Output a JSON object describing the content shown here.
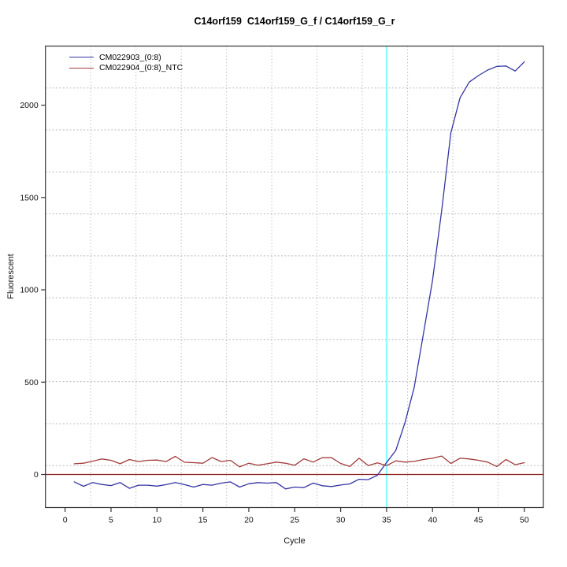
{
  "chart_data": {
    "type": "line",
    "title": "C14orf159  C14orf159_G_f / C14orf159_G_r",
    "xlabel": "Cycle",
    "ylabel": "Fluorescent",
    "xlim": [
      -2.14,
      52.07
    ],
    "ylim": [
      -179,
      2320
    ],
    "x_ticks": [
      0,
      5,
      10,
      15,
      20,
      25,
      30,
      35,
      40,
      45,
      50
    ],
    "y_ticks": [
      0,
      500,
      1000,
      1500,
      2000
    ],
    "grid": {
      "nx": 11,
      "ny": 11,
      "color": "#b9b9b9",
      "style": "dotted"
    },
    "legend_position": "top-left",
    "x": [
      1,
      2,
      3,
      4,
      5,
      6,
      7,
      8,
      9,
      10,
      11,
      12,
      13,
      14,
      15,
      16,
      17,
      18,
      19,
      20,
      21,
      22,
      23,
      24,
      25,
      26,
      27,
      28,
      29,
      30,
      31,
      32,
      33,
      34,
      35,
      36,
      37,
      38,
      39,
      40,
      41,
      42,
      43,
      44,
      45,
      46,
      47,
      48,
      49,
      50
    ],
    "series": [
      {
        "name": "CM022903_(0:8)",
        "color": "#3434a4",
        "values": [
          -40,
          -64,
          -44,
          -54,
          -60,
          -44,
          -75,
          -58,
          -58,
          -63,
          -55,
          -44,
          -55,
          -68,
          -54,
          -58,
          -47,
          -40,
          -68,
          -50,
          -44,
          -47,
          -44,
          -78,
          -68,
          -71,
          -47,
          -61,
          -65,
          -57,
          -51,
          -26,
          -28,
          -4,
          65,
          130,
          280,
          470,
          760,
          1050,
          1430,
          1850,
          2040,
          2125,
          2160,
          2190,
          2210,
          2212,
          2185,
          2235
        ]
      },
      {
        "name": "CM022904_(0:8)_NTC",
        "color": "#a33b3b",
        "values": [
          58,
          61,
          72,
          84,
          77,
          58,
          81,
          70,
          77,
          78,
          70,
          98,
          66,
          64,
          61,
          92,
          70,
          77,
          41,
          61,
          50,
          58,
          67,
          61,
          50,
          85,
          67,
          91,
          91,
          60,
          43,
          88,
          48,
          63,
          48,
          74,
          67,
          71,
          81,
          88,
          100,
          60,
          88,
          84,
          77,
          67,
          43,
          81,
          53,
          64
        ]
      }
    ],
    "markers": {
      "threshold_cycle_vline": {
        "x": 35,
        "color": "#80ffff"
      },
      "zero_hline": {
        "y": 0,
        "color": "#8b1f1f"
      }
    },
    "axis_color": "#333333",
    "tick_label_color": "#111111"
  }
}
